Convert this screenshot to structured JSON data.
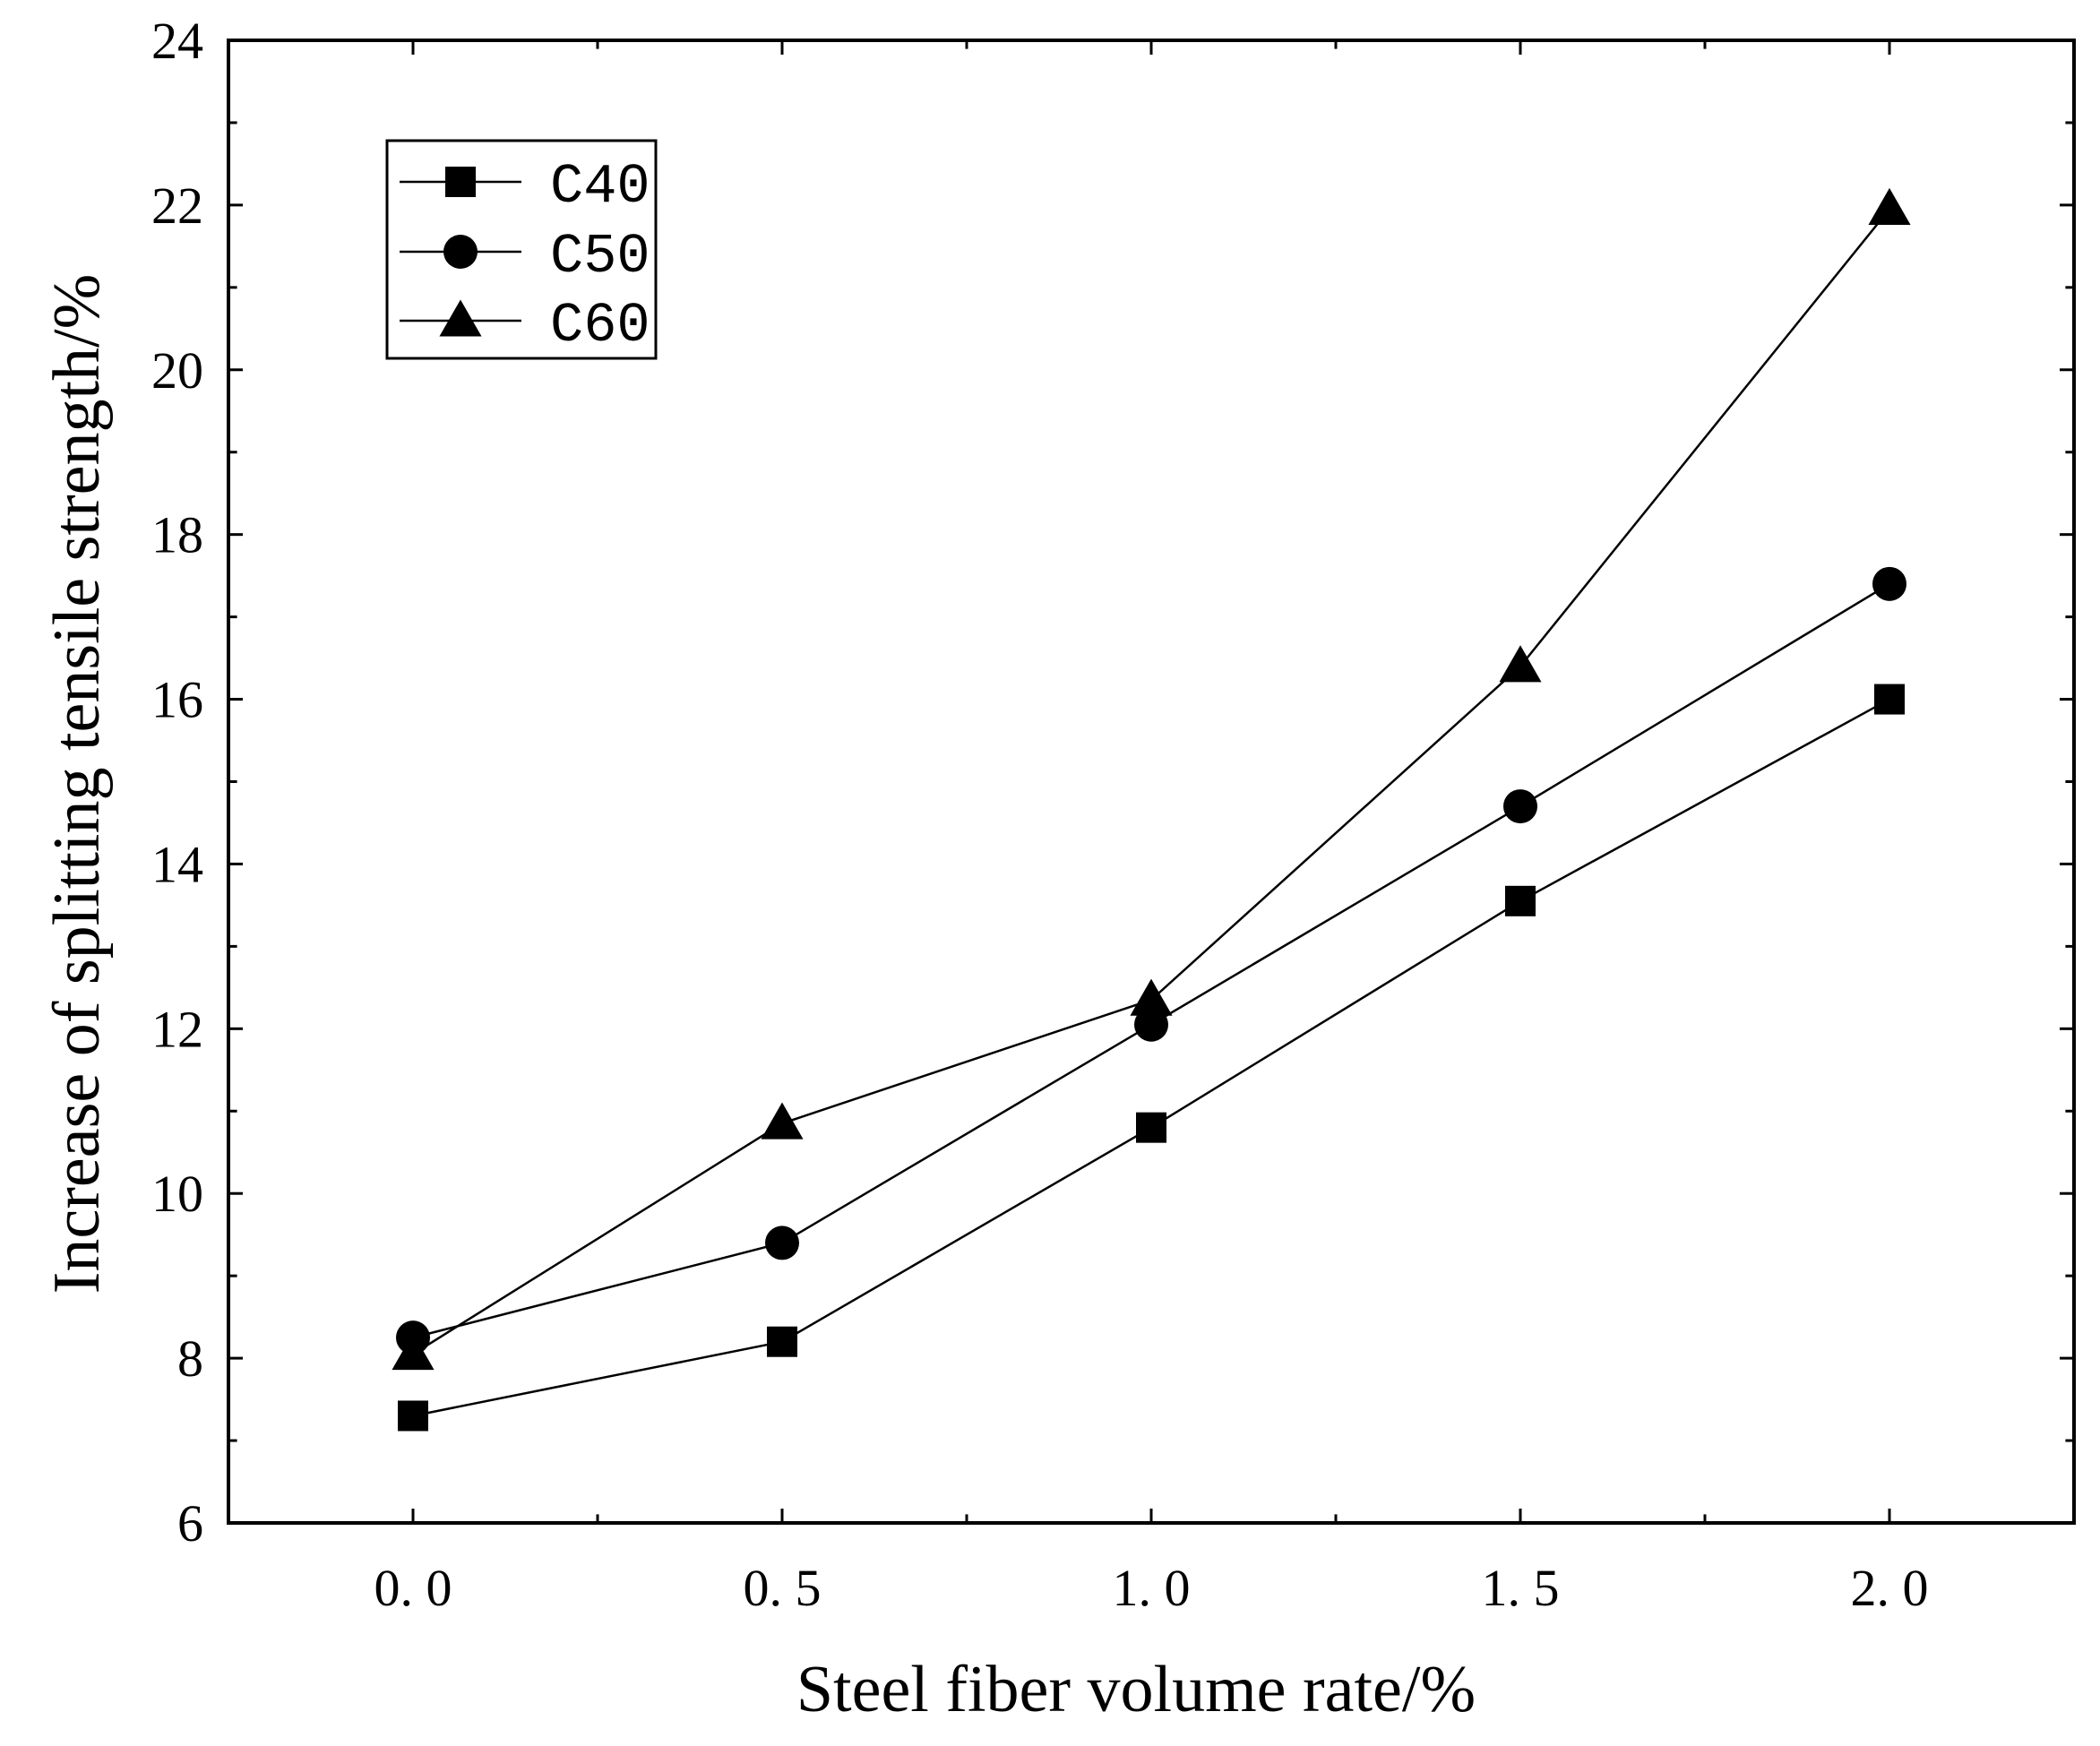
{
  "chart_data": {
    "type": "line",
    "title": "",
    "xlabel": "Steel fiber volume rate/%",
    "ylabel": "Increase of splitting tensile strength/%",
    "x": [
      0.0,
      0.5,
      1.0,
      1.5,
      2.0
    ],
    "x_tick_labels": [
      "0. 0",
      "0. 5",
      "1. 0",
      "1. 5",
      "2. 0"
    ],
    "y_tick_labels": [
      "6",
      "8",
      "10",
      "12",
      "14",
      "16",
      "18",
      "20",
      "22",
      "24"
    ],
    "xlim": [
      -0.25,
      2.25
    ],
    "ylim": [
      6,
      24
    ],
    "grid": false,
    "legend_position": "top-left",
    "series": [
      {
        "name": "C40",
        "marker": "square",
        "values": [
          7.3,
          8.2,
          10.8,
          13.55,
          16.0
        ]
      },
      {
        "name": "C50",
        "marker": "circle",
        "values": [
          8.25,
          9.4,
          12.05,
          14.7,
          17.4
        ]
      },
      {
        "name": "C60",
        "marker": "triangle",
        "values": [
          8.05,
          10.85,
          12.35,
          16.4,
          21.95
        ]
      }
    ]
  },
  "colors": {
    "line": "#000000",
    "marker": "#000000",
    "background": "#ffffff"
  }
}
